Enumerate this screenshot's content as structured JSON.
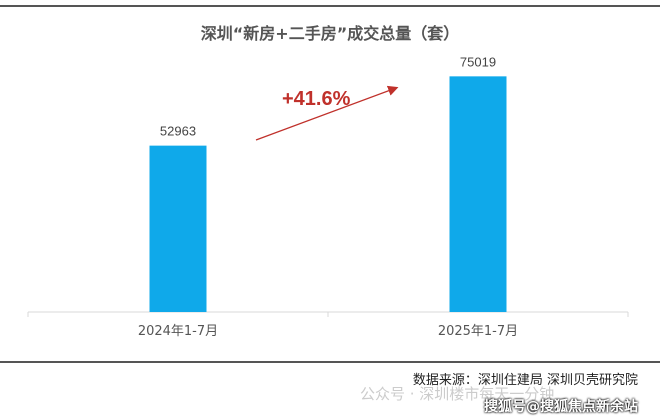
{
  "chart_data": {
    "type": "bar",
    "title": "深圳“新房+二手房”成交总量（套）",
    "categories": [
      "2024年1-7月",
      "2025年1-7月"
    ],
    "values": [
      52963,
      75019
    ],
    "ylim": [
      0,
      85000
    ],
    "grid": false,
    "bar_color": "#0fa9ea",
    "annotation": {
      "text": "+41.6%",
      "color": "#c0312b"
    }
  },
  "source": "数据来源：深圳住建局 深圳贝壳研究院",
  "watermarks": [
    "公众号 · 深圳楼市每天一分钟",
    "搜狐号@搜狐焦点新余站"
  ]
}
